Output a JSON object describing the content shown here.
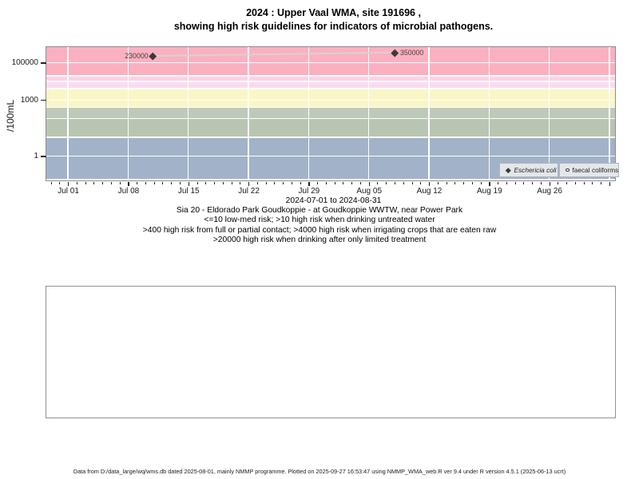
{
  "title": {
    "line1": "2024 : Upper Vaal WMA, site 191696 ,",
    "line2": "showing high risk guidelines for indicators of microbial pathogens."
  },
  "chart_data": {
    "type": "scatter",
    "ylabel": "/100mL",
    "y_scale": "log10",
    "y_ticks": [
      1,
      1000,
      100000
    ],
    "y_tick_labels": [
      "1",
      "1000",
      "100000"
    ],
    "ylim": [
      0.06,
      700000
    ],
    "x_axis": {
      "range_label": "2024-07-01 to 2024-08-31",
      "tick_labels": [
        "Jul 01",
        "Jul 08",
        "Jul 15",
        "Jul 22",
        "Jul 29",
        "Aug 05",
        "Aug 12",
        "Aug 19",
        "Aug 26"
      ],
      "tick_days": [
        0,
        7,
        14,
        21,
        28,
        35,
        42,
        49,
        56
      ],
      "gridline_days": [
        0,
        7,
        14,
        21,
        28,
        35,
        42,
        49,
        56,
        63
      ],
      "minor_tick_day_range": [
        -2,
        63
      ]
    },
    "bands": [
      {
        "name": "high-risk-drinking-limited-treatment",
        "from": 20000,
        "to": 700000,
        "color": "#fab0c0"
      },
      {
        "name": "band-10000-20000",
        "from": 10000,
        "to": 20000,
        "color": "#fcd2e2"
      },
      {
        "name": "band-4000-10000",
        "from": 4000,
        "to": 10000,
        "color": "#fadcf2"
      },
      {
        "name": "band-400-4000",
        "from": 400,
        "to": 4000,
        "color": "#faf6c6"
      },
      {
        "name": "band-100-400",
        "from": 100,
        "to": 400,
        "color": "#bec9ba"
      },
      {
        "name": "band-10-100",
        "from": 10,
        "to": 100,
        "color": "#b9c5b3"
      },
      {
        "name": "low-med-risk-band",
        "from": 0.06,
        "to": 10,
        "color": "#a2b2c8"
      }
    ],
    "gridline_values": [
      1,
      10,
      100,
      400,
      1000,
      4000,
      10000,
      20000,
      100000
    ],
    "series": [
      {
        "name": "Eschericia coli",
        "marker": "diamond",
        "marker_color": "#3a3a3a",
        "line_color": "#d4d4d4",
        "points": [
          {
            "day": 9.9,
            "value": 230000,
            "label": "230000",
            "label_side": "left"
          },
          {
            "day": 38.0,
            "value": 350000,
            "label": "350000",
            "label_side": "right"
          }
        ]
      },
      {
        "name": "faecal coliforms",
        "marker": "open-circle",
        "points": []
      }
    ],
    "legend": [
      {
        "label": "Eschericia coli",
        "marker": "diamond"
      },
      {
        "label": "faecal coliforms",
        "marker": "open-circle"
      }
    ]
  },
  "captions": [
    "Sia 20 - Eldorado Park Goudkoppie - at Goudkoppie WWTW, near Power Park",
    "<=10 low-med risk; >10 high risk when drinking untreated water",
    ">400 high risk from full or partial contact; >4000 high risk when irrigating crops that are eaten raw",
    ">20000 high risk when drinking after only limited treatment"
  ],
  "footer": "Data from D:/data_large/wq/wms.db dated 2025-08-01, mainly NMMP programme. Plotted on 2025-09-27 16:53:47 using NMMP_WMA_web.R ver 9.4 under R version 4.5.1 (2025-06-13 ucrt)"
}
